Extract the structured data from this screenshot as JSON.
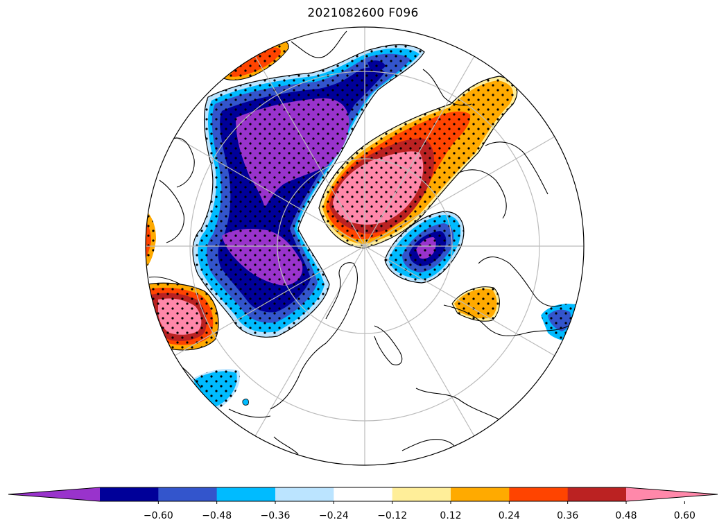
{
  "title": "2021082600 F096",
  "colorbar": {
    "levels": [
      -0.6,
      -0.48,
      -0.36,
      -0.24,
      -0.12,
      0.12,
      0.24,
      0.36,
      0.48,
      0.6
    ],
    "tick_labels": [
      "−0.60",
      "−0.48",
      "−0.36",
      "−0.24",
      "−0.12",
      "0.12",
      "0.24",
      "0.36",
      "0.48",
      "0.60"
    ],
    "colors": [
      "#9933cc",
      "#000099",
      "#3355cc",
      "#00bbff",
      "#bbe4ff",
      "#ffffff",
      "#ffee99",
      "#ffaa00",
      "#ff4400",
      "#bb2222",
      "#ff88aa"
    ],
    "extend": "both"
  },
  "map": {
    "projection": "north-polar-stereographic",
    "graticule": true,
    "stippling": "significance dots"
  }
}
